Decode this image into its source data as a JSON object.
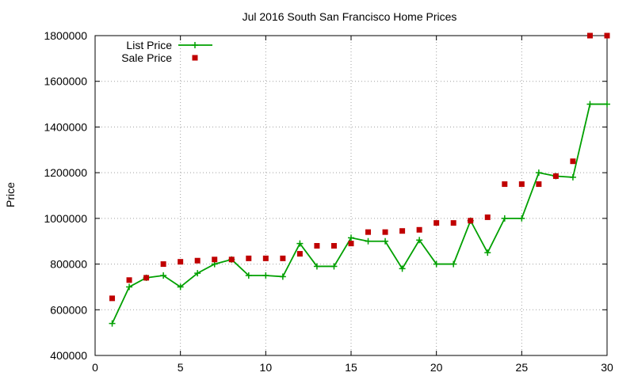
{
  "chart_data": {
    "type": "line",
    "title": "Jul 2016 South San Francisco Home Prices",
    "xlabel": "",
    "ylabel": "Price",
    "xlim": [
      0,
      30
    ],
    "ylim": [
      400000,
      1800000
    ],
    "x_ticks": [
      0,
      5,
      10,
      15,
      20,
      25,
      30
    ],
    "y_ticks": [
      400000,
      600000,
      800000,
      1000000,
      1200000,
      1400000,
      1600000,
      1800000
    ],
    "grid": true,
    "legend_position": "top-left",
    "x": [
      1,
      2,
      3,
      4,
      5,
      6,
      7,
      8,
      9,
      10,
      11,
      12,
      13,
      14,
      15,
      16,
      17,
      18,
      19,
      20,
      21,
      22,
      23,
      24,
      25,
      26,
      27,
      28,
      29,
      30
    ],
    "series": [
      {
        "name": "List Price",
        "style": "line-points",
        "marker": "plus",
        "color": "#00a000",
        "values": [
          540000,
          700000,
          740000,
          750000,
          700000,
          760000,
          800000,
          820000,
          750000,
          750000,
          745000,
          890000,
          790000,
          790000,
          915000,
          900000,
          900000,
          780000,
          905000,
          800000,
          800000,
          990000,
          850000,
          1000000,
          1000000,
          1200000,
          1185000,
          1180000,
          1500000,
          1500000
        ]
      },
      {
        "name": "Sale Price",
        "style": "points",
        "marker": "square",
        "color": "#c00000",
        "values": [
          650000,
          730000,
          740000,
          800000,
          810000,
          815000,
          820000,
          820000,
          825000,
          825000,
          825000,
          845000,
          880000,
          880000,
          890000,
          940000,
          940000,
          945000,
          950000,
          980000,
          980000,
          990000,
          1005000,
          1150000,
          1150000,
          1150000,
          1185000,
          1250000,
          1800000,
          1800000
        ]
      }
    ]
  }
}
